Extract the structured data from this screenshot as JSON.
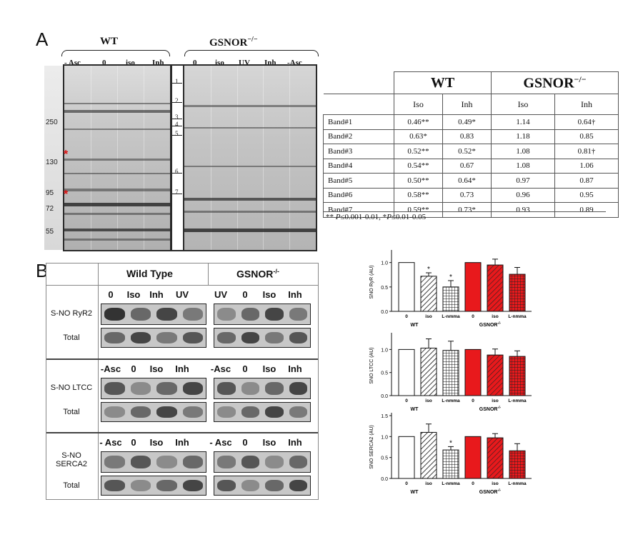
{
  "panel_a": {
    "letter": "A",
    "wt_label": "WT",
    "ko_label": "GSNOR",
    "ko_sup": "−/−",
    "wt_lanes": [
      "- Asc",
      "0",
      "iso",
      "Inh"
    ],
    "ko_lanes": [
      "0",
      "iso",
      "UV",
      "Inh",
      "-Asc"
    ],
    "mw_markers": [
      "250",
      "130",
      "95",
      "72",
      "55"
    ],
    "band_numbers": [
      "1",
      "2",
      "3",
      "4",
      "5",
      "6",
      "7"
    ],
    "star": "*",
    "table": {
      "wt_header": "WT",
      "ko_header": "GSNOR",
      "ko_sup": "−/−",
      "sub_headers": [
        "Iso",
        "Inh",
        "Iso",
        "Inh"
      ],
      "rows": [
        {
          "label": "Band#1",
          "values": [
            "0.46**",
            "0.49*",
            "1.14",
            "0.64†"
          ]
        },
        {
          "label": "Band#2",
          "values": [
            "0.63*",
            "0.83",
            "1.18",
            "0.85"
          ]
        },
        {
          "label": "Band#3",
          "values": [
            "0.52**",
            "0.52*",
            "1.08",
            "0.81†"
          ]
        },
        {
          "label": "Band#4",
          "values": [
            "0.54**",
            "0.67",
            "1.08",
            "1.06"
          ]
        },
        {
          "label": "Band#5",
          "values": [
            "0.50**",
            "0.64*",
            "0.97",
            "0.87"
          ]
        },
        {
          "label": "Band#6",
          "values": [
            "0.58**",
            "0.73",
            "0.96",
            "0.95"
          ]
        },
        {
          "label": "Band#7",
          "values": [
            "0.59**",
            "0.73*",
            "0.93",
            "0.89"
          ]
        }
      ],
      "note_part1": "** ",
      "note_p1": "P",
      "note_part2": "≤0.001-0.01, *",
      "note_p2": "P",
      "note_part3": "≤0.01-0.05"
    }
  },
  "panel_b": {
    "letter": "B",
    "wt_header": "Wild Type",
    "ko_header": "GSNOR",
    "ko_sup": "-/-",
    "sections": [
      {
        "wt_lanes": [
          "0",
          "Iso",
          "Inh",
          "UV"
        ],
        "ko_lanes": [
          "UV",
          "0",
          "Iso",
          "Inh"
        ],
        "row_labels": [
          "S-NO RyR2",
          "Total"
        ]
      },
      {
        "wt_lanes": [
          "-Asc",
          "0",
          "Iso",
          "Inh"
        ],
        "ko_lanes": [
          "-Asc",
          "0",
          "Iso",
          "Inh"
        ],
        "row_labels": [
          "S-NO LTCC",
          "Total"
        ]
      },
      {
        "wt_lanes": [
          "- Asc",
          "0",
          "Iso",
          "Inh"
        ],
        "ko_lanes": [
          "- Asc",
          "0",
          "Iso",
          "Inh"
        ],
        "row_labels": [
          "S-NO\nSERCA2",
          "Total"
        ]
      }
    ]
  },
  "chart_data": [
    {
      "type": "bar",
      "ylabel": "SNO RyR (AU)",
      "categories": [
        "0",
        "iso",
        "L-nmma",
        "0",
        "iso",
        "L-nmma"
      ],
      "values": [
        1.0,
        0.72,
        0.5,
        1.0,
        0.95,
        0.76
      ],
      "errors": [
        0,
        0.07,
        0.13,
        0,
        0.12,
        0.14
      ],
      "significance": [
        "",
        "*",
        "*",
        "",
        "",
        ""
      ],
      "group_labels": [
        "WT",
        "GSNOR"
      ],
      "group_sup": [
        "",
        "-/-"
      ],
      "yticks": [
        "0.0",
        "0.5",
        "1.0"
      ],
      "ylim": [
        0,
        1.2
      ],
      "fills": [
        "white",
        "hatch",
        "grid",
        "red",
        "red-hatch",
        "red-grid"
      ]
    },
    {
      "type": "bar",
      "ylabel": "SNO LTCC (AU)",
      "categories": [
        "0",
        "iso",
        "L-nmma",
        "0",
        "iso",
        "L-nmma"
      ],
      "values": [
        1.0,
        1.03,
        0.98,
        1.0,
        0.88,
        0.85
      ],
      "errors": [
        0,
        0.2,
        0.2,
        0,
        0.13,
        0.12
      ],
      "significance": [
        "",
        "",
        "",
        "",
        "",
        ""
      ],
      "group_labels": [
        "WT",
        "GSNOR"
      ],
      "group_sup": [
        "",
        "-/-"
      ],
      "yticks": [
        "0.0",
        "0.5",
        "1.0"
      ],
      "ylim": [
        0,
        1.3
      ],
      "fills": [
        "white",
        "hatch",
        "grid",
        "red",
        "red-hatch",
        "red-grid"
      ]
    },
    {
      "type": "bar",
      "ylabel": "SNO SERCA2 (AU)",
      "categories": [
        "0",
        "iso",
        "L-nmma",
        "0",
        "iso",
        "L-nmma"
      ],
      "values": [
        1.0,
        1.1,
        0.68,
        1.0,
        0.97,
        0.66
      ],
      "errors": [
        0,
        0.2,
        0.08,
        0,
        0.1,
        0.17
      ],
      "significance": [
        "",
        "",
        "*",
        "",
        "",
        ""
      ],
      "group_labels": [
        "WT",
        "GSNOR"
      ],
      "group_sup": [
        "",
        "-/-"
      ],
      "yticks": [
        "0.0",
        "0.5",
        "1.0",
        "1.5"
      ],
      "ylim": [
        0,
        1.5
      ],
      "fills": [
        "white",
        "hatch",
        "grid",
        "red",
        "red-hatch",
        "red-grid"
      ]
    }
  ],
  "colors": {
    "red": "#e8191c",
    "black": "#111111"
  }
}
